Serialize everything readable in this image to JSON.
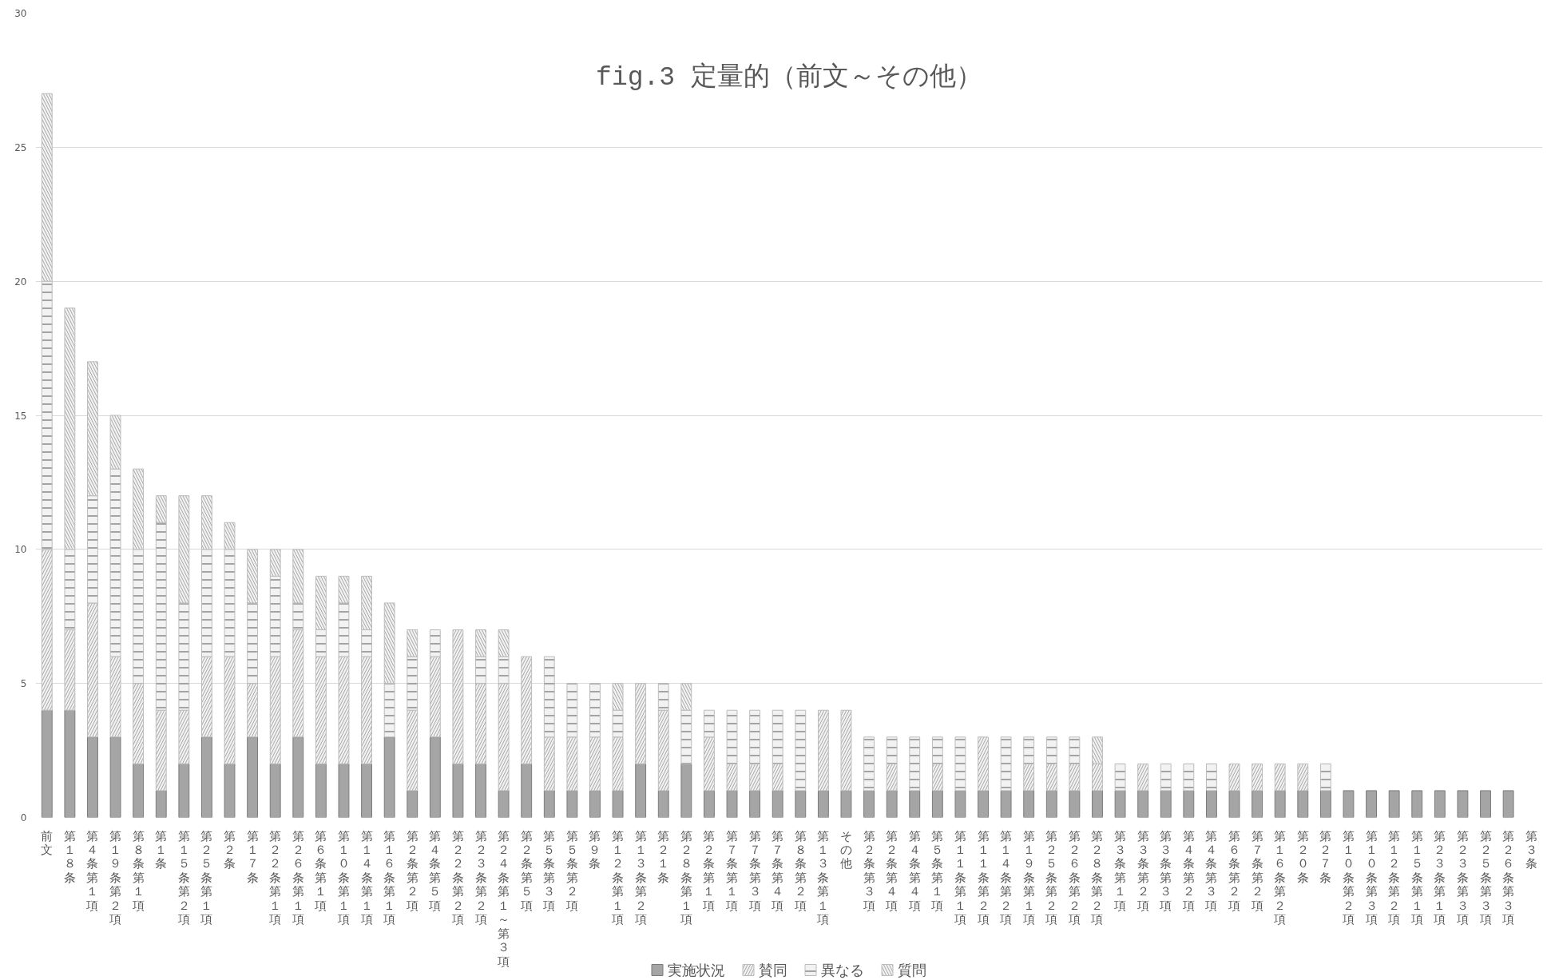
{
  "chart_data": {
    "type": "bar",
    "title": "fig.3 定量的（前文～その他）",
    "stacked": true,
    "categories": [
      "前文",
      "第１８条",
      "第４条第１項",
      "第１９条第２項",
      "第８条第１項",
      "第１条",
      "第１５条第２項",
      "第２５条第１項",
      "第２条",
      "第１７条",
      "第２２条第１項",
      "第２６条第１項",
      "第６条第１項",
      "第１０条第１項",
      "第１４条第１項",
      "第１６条第１項",
      "第２条第２項",
      "第４条第５項",
      "第２２条第２項",
      "第２３条第２項",
      "第２４条第１～第３項",
      "第２条第５項",
      "第５条第３項",
      "第５条第２項",
      "第９条",
      "第１２条第１項",
      "第１３条第２項",
      "第２１条",
      "第２８条第１項",
      "第２条第１項",
      "第７条第１項",
      "第７条第３項",
      "第７条第４項",
      "第８条第２項",
      "第１３条第１項",
      "その他",
      "第２条第３項",
      "第２条第４項",
      "第４条第４項",
      "第５条第１項",
      "第１１条第１項",
      "第１１条第２項",
      "第１４条第２項",
      "第１９条第１項",
      "第２５条第２項",
      "第２６条第２項",
      "第２８条第２項",
      "第３条第１項",
      "第３条第２項",
      "第３条第３項",
      "第４条第２項",
      "第４条第３項",
      "第６条第２項",
      "第７条第２項",
      "第１６条第２項",
      "第２０条",
      "第２７条",
      "第１０条第２項",
      "第１０条第３項",
      "第１２条第２項",
      "第１５条第１項",
      "第２３条第１項",
      "第２３条第３項",
      "第２５条第３項",
      "第２６条第３項",
      "第３条"
    ],
    "series": [
      {
        "name": "実施状況",
        "color": "#a5a5a5",
        "values": [
          4,
          4,
          3,
          3,
          2,
          1,
          2,
          3,
          2,
          3,
          2,
          3,
          2,
          2,
          2,
          3,
          1,
          3,
          2,
          2,
          1,
          2,
          1,
          1,
          1,
          1,
          2,
          1,
          2,
          1,
          1,
          1,
          1,
          1,
          1,
          1,
          1,
          1,
          1,
          1,
          1,
          1,
          1,
          1,
          1,
          1,
          1,
          1,
          1,
          1,
          1,
          1,
          1,
          1,
          1,
          1,
          1,
          1,
          1,
          1,
          1,
          1,
          1,
          1,
          1,
          0
        ]
      },
      {
        "name": "賛同",
        "color": "#f2f2f2",
        "values": [
          6,
          3,
          5,
          3,
          3,
          3,
          2,
          3,
          4,
          2,
          4,
          4,
          4,
          4,
          4,
          0,
          3,
          3,
          5,
          3,
          4,
          4,
          2,
          2,
          2,
          2,
          3,
          3,
          0,
          2,
          1,
          1,
          1,
          0,
          3,
          3,
          0,
          1,
          0,
          1,
          0,
          2,
          0,
          1,
          1,
          1,
          1,
          0,
          1,
          0,
          0,
          0,
          1,
          1,
          1,
          1,
          0,
          0,
          0,
          0,
          0,
          0,
          0,
          0,
          0,
          0
        ]
      },
      {
        "name": "異なる",
        "color": "#f2f2f2",
        "values": [
          10,
          3,
          4,
          7,
          5,
          7,
          4,
          4,
          4,
          3,
          3,
          1,
          1,
          2,
          1,
          2,
          2,
          1,
          0,
          1,
          1,
          0,
          3,
          2,
          2,
          1,
          0,
          1,
          2,
          1,
          2,
          2,
          2,
          3,
          0,
          0,
          2,
          1,
          2,
          1,
          2,
          0,
          2,
          1,
          1,
          1,
          0,
          1,
          0,
          1,
          1,
          1,
          0,
          0,
          0,
          0,
          1,
          0,
          0,
          0,
          0,
          0,
          0,
          0,
          0,
          0
        ]
      },
      {
        "name": "質問",
        "color": "#f2f2f2",
        "values": [
          7,
          9,
          5,
          2,
          3,
          1,
          4,
          2,
          1,
          2,
          1,
          2,
          2,
          1,
          2,
          3,
          1,
          0,
          0,
          1,
          1,
          0,
          0,
          0,
          0,
          1,
          0,
          0,
          1,
          0,
          0,
          0,
          0,
          0,
          0,
          0,
          0,
          0,
          0,
          0,
          0,
          0,
          0,
          0,
          0,
          0,
          1,
          0,
          0,
          0,
          0,
          0,
          0,
          0,
          0,
          0,
          0,
          0,
          0,
          0,
          0,
          0,
          0,
          0,
          0,
          0
        ]
      }
    ],
    "ylim": [
      0,
      30
    ],
    "yticks": [
      0,
      5,
      10,
      15,
      20,
      25,
      30
    ],
    "grid": "y",
    "legend": "bottom"
  }
}
